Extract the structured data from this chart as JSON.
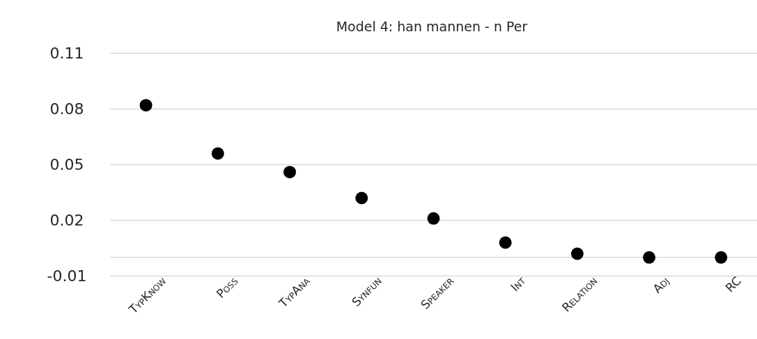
{
  "chart_data": {
    "type": "scatter",
    "title": "Model 4: han mannen - n Per",
    "categories": [
      "TypKnow",
      "Poss",
      "TypAna",
      "Synfun",
      "Speaker",
      "Int",
      "Relation",
      "Adj",
      "RC"
    ],
    "values": [
      0.082,
      0.056,
      0.046,
      0.032,
      0.021,
      0.008,
      0.002,
      0,
      0
    ],
    "color": "#000000",
    "marker": "circle",
    "ylim": [
      -0.01,
      0.11
    ],
    "yticks": [
      -0.01,
      0.02,
      0.05,
      0.08,
      0.11
    ],
    "grid": "y",
    "ref_lines": [
      {
        "axis": "y",
        "value": 0,
        "color": "#d9d9d9"
      }
    ]
  }
}
